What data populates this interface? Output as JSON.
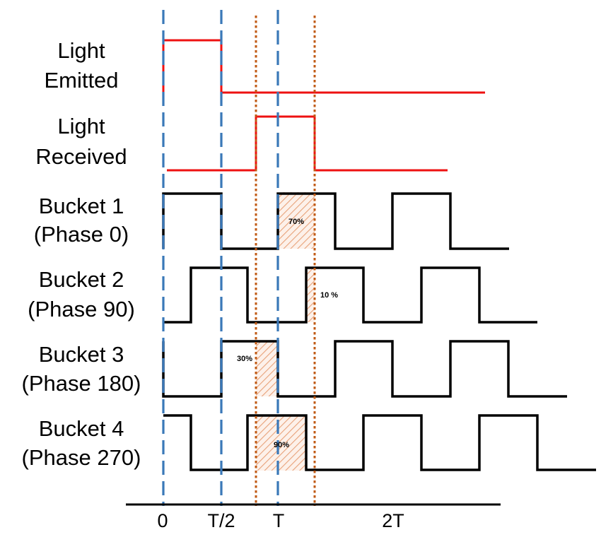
{
  "colors": {
    "emitted": "#ee1111",
    "received": "#ee1111",
    "bucket": "#000000",
    "phase_marker": "#3a78b8",
    "delay_marker": "#c05a14",
    "overlap_hatch": "#e8a27a"
  },
  "rows": [
    {
      "id": "emitted",
      "label_lines": [
        "Light",
        "Emitted"
      ]
    },
    {
      "id": "received",
      "label_lines": [
        "Light",
        "Received"
      ]
    },
    {
      "id": "bucket1",
      "label_lines": [
        "Bucket 1",
        "(Phase 0)"
      ],
      "phase_deg": 0,
      "overlap_label": "70%"
    },
    {
      "id": "bucket2",
      "label_lines": [
        "Bucket 2",
        "(Phase 90)"
      ],
      "phase_deg": 90,
      "overlap_label": "10 %"
    },
    {
      "id": "bucket3",
      "label_lines": [
        "Bucket 3",
        "(Phase 180)"
      ],
      "phase_deg": 180,
      "overlap_label": "30%"
    },
    {
      "id": "bucket4",
      "label_lines": [
        "Bucket 4",
        "(Phase 270)"
      ],
      "phase_deg": 270,
      "overlap_label": "90%"
    }
  ],
  "time_axis": {
    "ticks": [
      "0",
      "T/2",
      "T",
      "2T"
    ]
  }
}
